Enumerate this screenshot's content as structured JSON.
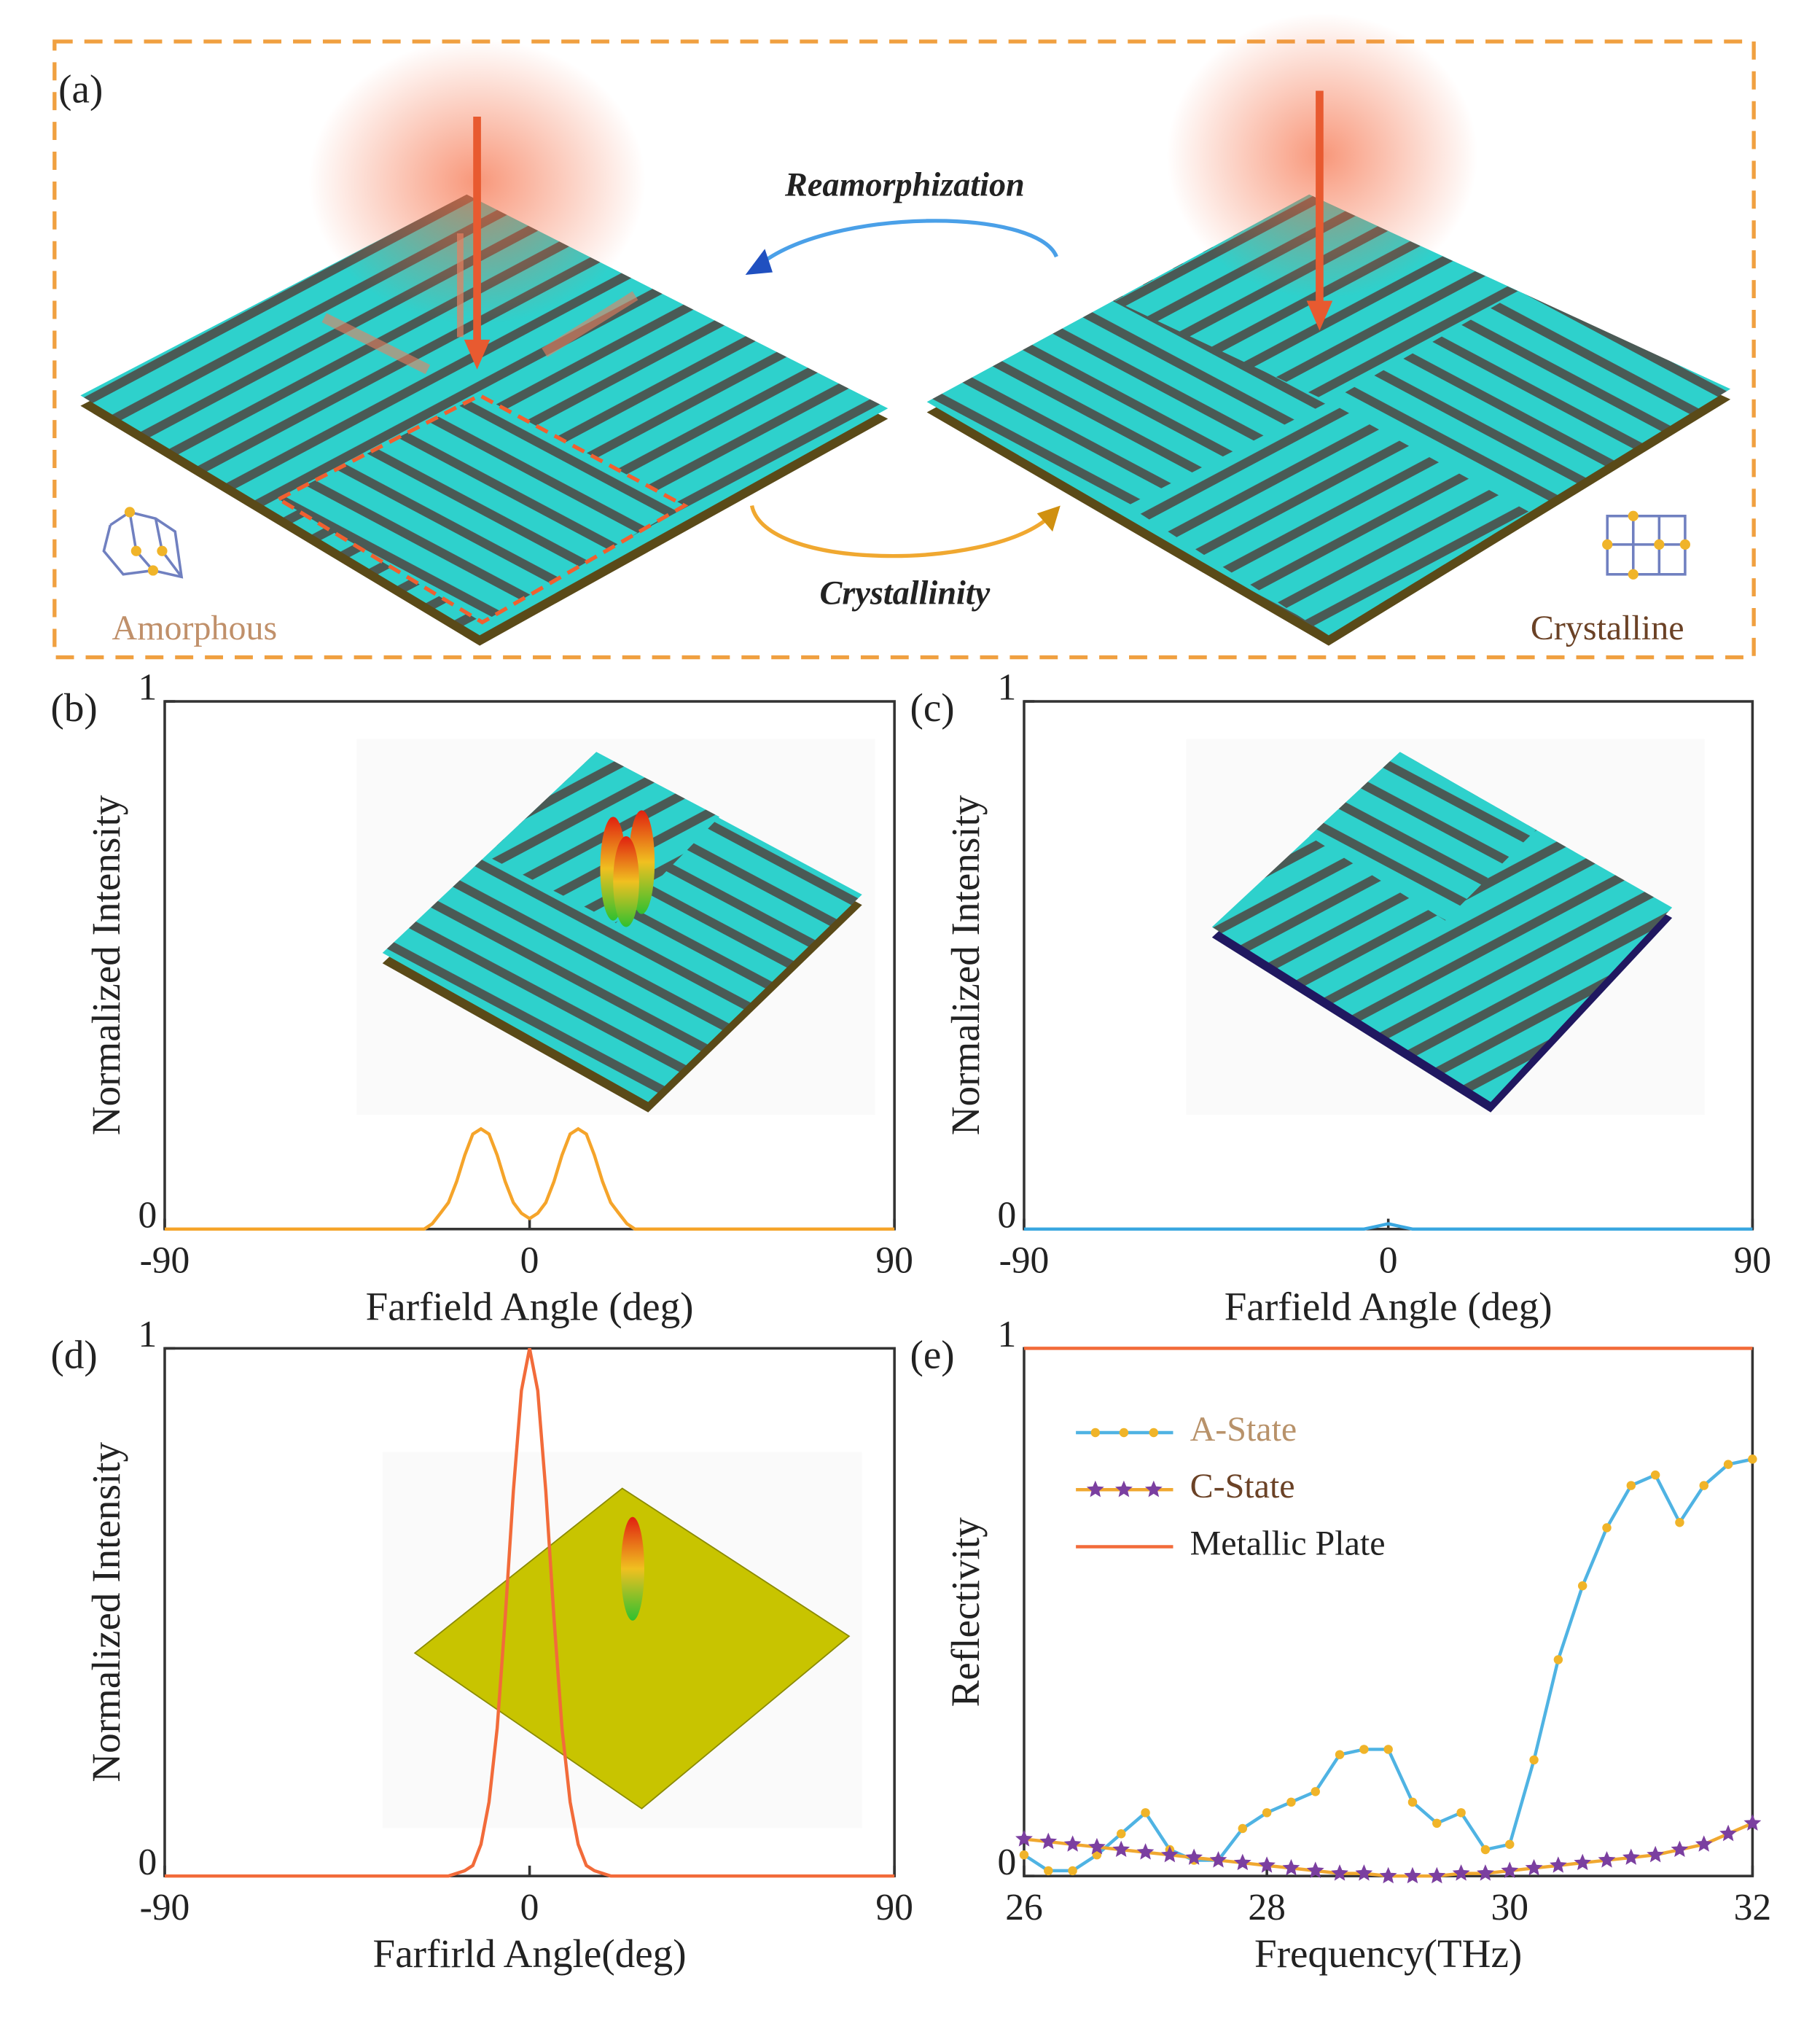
{
  "figure": {
    "panel_a": {
      "label": "(a)",
      "arrow_top": "Reamorphization",
      "arrow_bottom": "Crystallinity",
      "left_state": "Amorphous",
      "right_state": "Crystalline"
    }
  },
  "chart_data": [
    {
      "type": "line",
      "label": "(b)",
      "xlabel": "Farfield Angle (deg)",
      "ylabel": "Normalized Intensity",
      "x": [
        -90,
        -30,
        -28,
        -26,
        -24,
        -22,
        -20,
        -18,
        -16,
        -14,
        -12,
        -10,
        -8,
        -6,
        -4,
        -2,
        0,
        2,
        4,
        6,
        8,
        10,
        12,
        14,
        16,
        18,
        20,
        22,
        24,
        26,
        28,
        30,
        90
      ],
      "series": [
        {
          "color": "#f5a42a",
          "values": [
            0,
            0,
            0,
            0,
            0.01,
            0.03,
            0.05,
            0.09,
            0.14,
            0.18,
            0.19,
            0.18,
            0.14,
            0.09,
            0.05,
            0.03,
            0.02,
            0.03,
            0.05,
            0.09,
            0.14,
            0.18,
            0.19,
            0.18,
            0.14,
            0.09,
            0.05,
            0.03,
            0.01,
            0,
            0,
            0,
            0
          ]
        }
      ],
      "xlim": [
        -90,
        90
      ],
      "ylim": [
        0,
        1
      ],
      "xticks": [
        -90,
        0,
        90
      ],
      "yticks": [
        0,
        1
      ]
    },
    {
      "type": "line",
      "label": "(c)",
      "xlabel": "Farfield Angle (deg)",
      "ylabel": "Normalized Intensity",
      "x": [
        -90,
        -6,
        -3,
        0,
        3,
        6,
        90
      ],
      "series": [
        {
          "color": "#3aa7e0",
          "values": [
            0,
            0,
            0.005,
            0.01,
            0.005,
            0,
            0
          ]
        }
      ],
      "xlim": [
        -90,
        90
      ],
      "ylim": [
        0,
        1
      ],
      "xticks": [
        -90,
        0,
        90
      ],
      "yticks": [
        0,
        1
      ]
    },
    {
      "type": "line",
      "label": "(d)",
      "xlabel": "Farfirld Angle(deg)",
      "ylabel": "Normalized Intensity",
      "x": [
        -90,
        -20,
        -16,
        -14,
        -12,
        -10,
        -8,
        -6,
        -4,
        -2,
        0,
        2,
        4,
        6,
        8,
        10,
        12,
        14,
        16,
        20,
        90
      ],
      "series": [
        {
          "color": "#f26b3a",
          "values": [
            0,
            0,
            0.01,
            0.02,
            0.06,
            0.14,
            0.28,
            0.49,
            0.73,
            0.92,
            1,
            0.92,
            0.73,
            0.49,
            0.28,
            0.14,
            0.06,
            0.02,
            0.01,
            0,
            0
          ]
        }
      ],
      "xlim": [
        -90,
        90
      ],
      "ylim": [
        0,
        1
      ],
      "xticks": [
        -90,
        0,
        90
      ],
      "yticks": [
        0,
        1
      ]
    },
    {
      "type": "line",
      "label": "(e)",
      "xlabel": "Frequency(THz)",
      "ylabel": "Reflectivity",
      "x": [
        26,
        26.2,
        26.4,
        26.6,
        26.8,
        27,
        27.2,
        27.4,
        27.6,
        27.8,
        28,
        28.2,
        28.4,
        28.6,
        28.8,
        29,
        29.2,
        29.4,
        29.6,
        29.8,
        30,
        30.2,
        30.4,
        30.6,
        30.8,
        31,
        31.2,
        31.4,
        31.6,
        31.8,
        32
      ],
      "series": [
        {
          "name": "A-State",
          "color": "#4fb3e3",
          "marker": "circle",
          "marker_color": "#f0b429",
          "legend_text_color": "#b8926a",
          "values": [
            0.04,
            0.01,
            0.01,
            0.04,
            0.08,
            0.12,
            0.05,
            0.03,
            0.03,
            0.09,
            0.12,
            0.14,
            0.16,
            0.23,
            0.24,
            0.24,
            0.14,
            0.1,
            0.12,
            0.05,
            0.06,
            0.22,
            0.41,
            0.55,
            0.66,
            0.74,
            0.76,
            0.67,
            0.74,
            0.78,
            0.79
          ]
        },
        {
          "name": "C-State",
          "color": "#f0a830",
          "marker": "star",
          "marker_color": "#7b3fa0",
          "legend_text_color": "#6b4226",
          "values": [
            0.07,
            0.065,
            0.06,
            0.055,
            0.05,
            0.045,
            0.04,
            0.035,
            0.03,
            0.025,
            0.02,
            0.015,
            0.01,
            0.005,
            0.005,
            0,
            0,
            0,
            0.005,
            0.005,
            0.01,
            0.015,
            0.02,
            0.025,
            0.03,
            0.035,
            0.04,
            0.05,
            0.06,
            0.08,
            0.1
          ]
        },
        {
          "name": "Metallic Plate",
          "color": "#f26b3a",
          "legend_text_color": "#222",
          "values": [
            1,
            1,
            1,
            1,
            1,
            1,
            1,
            1,
            1,
            1,
            1,
            1,
            1,
            1,
            1,
            1,
            1,
            1,
            1,
            1,
            1,
            1,
            1,
            1,
            1,
            1,
            1,
            1,
            1,
            1,
            1
          ]
        }
      ],
      "legend": true,
      "legend_position": "upper left",
      "xlim": [
        26,
        32
      ],
      "ylim": [
        0,
        1
      ],
      "xticks": [
        26,
        28,
        30,
        32
      ],
      "yticks": [
        0,
        1
      ]
    }
  ]
}
